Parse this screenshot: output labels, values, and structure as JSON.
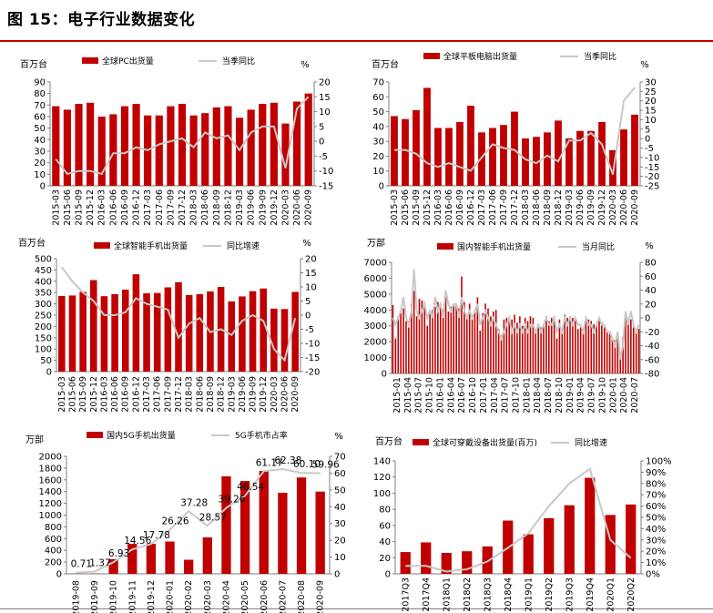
{
  "page": {
    "title": "图 15：电子行业数据变化"
  },
  "colors": {
    "bar": "#c00000",
    "line": "#c8c8c8",
    "axis": "#7f7f7f",
    "title_rule": "#c00000"
  },
  "chart_data": [
    {
      "type": "bar+line",
      "left_unit": "百万台",
      "right_unit": "%",
      "series": [
        {
          "name": "全球PC出货量",
          "type": "bar"
        },
        {
          "name": "当季同比",
          "type": "line"
        }
      ],
      "left_ylim": [
        0,
        90
      ],
      "left_ticks": [
        0,
        10,
        20,
        30,
        40,
        50,
        60,
        70,
        80,
        90
      ],
      "right_ylim": [
        -15,
        20
      ],
      "right_ticks": [
        -15,
        -10,
        -5,
        0,
        5,
        10,
        15,
        20
      ],
      "x": [
        "2015-03",
        "2015-06",
        "2015-09",
        "2015-12",
        "2016-03",
        "2016-06",
        "2016-09",
        "2016-12",
        "2017-03",
        "2017-06",
        "2017-09",
        "2017-12",
        "2018-03",
        "2018-06",
        "2018-09",
        "2018-12",
        "2019-03",
        "2019-06",
        "2019-09",
        "2019-12",
        "2020-03",
        "2020-06",
        "2020-09"
      ],
      "bar": [
        69,
        66,
        71,
        72,
        60,
        62,
        69,
        71,
        61,
        61,
        69,
        71,
        61,
        63,
        68,
        69,
        59,
        66,
        71,
        72,
        54,
        73,
        80
      ],
      "line": [
        -6,
        -11,
        -10,
        -10,
        -11,
        -4,
        -4,
        -2,
        -3,
        -1,
        0,
        1,
        -2,
        3,
        1,
        2,
        -3,
        3,
        5,
        5,
        -9,
        11,
        15
      ]
    },
    {
      "type": "bar+line",
      "left_unit": "百万台",
      "right_unit": "%",
      "series": [
        {
          "name": "全球平板电脑出货量",
          "type": "bar"
        },
        {
          "name": "当季同比",
          "type": "line"
        }
      ],
      "left_ylim": [
        0,
        70
      ],
      "left_ticks": [
        0,
        10,
        20,
        30,
        40,
        50,
        60,
        70
      ],
      "right_ylim": [
        -25,
        30
      ],
      "right_ticks": [
        -25,
        -20,
        -15,
        -10,
        -5,
        0,
        5,
        10,
        15,
        20,
        25,
        30
      ],
      "x": [
        "2015-03",
        "2015-06",
        "2015-09",
        "2015-12",
        "2016-03",
        "2016-06",
        "2016-09",
        "2016-12",
        "2017-03",
        "2017-06",
        "2017-09",
        "2017-12",
        "2018-03",
        "2018-06",
        "2018-09",
        "2018-12",
        "2019-03",
        "2019-06",
        "2019-09",
        "2019-12",
        "2020-03",
        "2020-06",
        "2020-09"
      ],
      "bar": [
        47,
        45,
        51,
        66,
        39,
        39,
        43,
        54,
        36,
        39,
        41,
        50,
        32,
        33,
        36,
        44,
        32,
        37,
        37,
        43,
        24,
        38,
        48
      ],
      "line": [
        -6,
        -6,
        -8,
        -13,
        -15,
        -13,
        -15,
        -17,
        -10,
        -3,
        -5,
        -6,
        -11,
        -13,
        -9,
        -12,
        -1,
        -1,
        3,
        -3,
        -19,
        20,
        27
      ]
    },
    {
      "type": "bar+line",
      "left_unit": "百万台",
      "right_unit": "%",
      "series": [
        {
          "name": "全球智能手机出货量",
          "type": "bar"
        },
        {
          "name": "同比增速",
          "type": "line"
        }
      ],
      "left_ylim": [
        0,
        500
      ],
      "left_ticks": [
        0,
        50,
        100,
        150,
        200,
        250,
        300,
        350,
        400,
        450,
        500
      ],
      "right_ylim": [
        -20,
        20
      ],
      "right_ticks": [
        -20,
        -15,
        -10,
        -5,
        0,
        5,
        10,
        15,
        20
      ],
      "x": [
        "2015-03",
        "2015-06",
        "2015-09",
        "2015-12",
        "2016-03",
        "2016-06",
        "2016-09",
        "2016-12",
        "2017-03",
        "2017-06",
        "2017-09",
        "2017-12",
        "2018-03",
        "2018-06",
        "2018-09",
        "2018-12",
        "2019-03",
        "2019-06",
        "2019-09",
        "2019-12",
        "2020-03",
        "2020-06",
        "2020-09"
      ],
      "bar": [
        335,
        337,
        353,
        405,
        334,
        343,
        363,
        431,
        347,
        348,
        373,
        396,
        339,
        343,
        355,
        375,
        311,
        333,
        356,
        368,
        279,
        277,
        353
      ],
      "line": [
        17,
        12,
        8,
        5,
        0,
        0,
        1,
        6,
        4,
        3,
        2,
        -8,
        -3,
        -1,
        -6,
        -5,
        -7,
        -2,
        0,
        -2,
        -12,
        -16,
        -1
      ]
    },
    {
      "type": "bar+line",
      "left_unit": "万部",
      "right_unit": "%",
      "series": [
        {
          "name": "国内智能手机出货量",
          "type": "bar"
        },
        {
          "name": "当月同比",
          "type": "line"
        }
      ],
      "left_ylim": [
        0,
        7000
      ],
      "left_ticks": [
        0,
        1000,
        2000,
        3000,
        4000,
        5000,
        6000,
        7000
      ],
      "right_ylim": [
        -80,
        80
      ],
      "right_ticks": [
        -80,
        -60,
        -40,
        -20,
        0,
        20,
        40,
        60,
        80
      ],
      "x_labels": [
        "2015-01",
        "2015-04",
        "2015-07",
        "2015-10",
        "2016-01",
        "2016-04",
        "2016-07",
        "2016-10",
        "2017-01",
        "2017-04",
        "2017-07",
        "2017-10",
        "2018-01",
        "2018-04",
        "2018-07",
        "2018-10",
        "2019-01",
        "2019-04",
        "2019-07",
        "2019-10",
        "2020-01",
        "2020-04",
        "2020-07"
      ],
      "bar": [
        4300,
        2200,
        3600,
        3800,
        4100,
        3300,
        2900,
        4400,
        5200,
        3600,
        4700,
        4600,
        4500,
        3000,
        3900,
        4000,
        4200,
        4500,
        4300,
        4000,
        5100,
        3900,
        4200,
        4300,
        4400,
        4100,
        6100,
        4500,
        3700,
        4400,
        3400,
        3900,
        4800,
        2700,
        3800,
        4400,
        4100,
        3600,
        3900,
        4000,
        2800,
        2400,
        3400,
        3500,
        3600,
        3400,
        3700,
        3200,
        3600,
        3000,
        3500,
        3300,
        3600,
        3500,
        2700,
        3100,
        2900,
        3100,
        3600,
        3300,
        3500,
        3600,
        2200,
        3400,
        2800,
        3700,
        3500,
        3600,
        3500,
        3400,
        2800,
        2900,
        2500,
        3500,
        3400,
        3300,
        3100,
        3000,
        3500,
        3200,
        2900,
        2600,
        2500,
        2200,
        2100,
        2300,
        1000,
        2300,
        3900,
        3200,
        3400,
        2900,
        2600,
        2800
      ],
      "line": [
        0,
        -10,
        0,
        10,
        30,
        0,
        -10,
        10,
        70,
        10,
        0,
        10,
        20,
        0,
        10,
        0,
        30,
        10,
        20,
        0,
        40,
        20,
        10,
        20,
        20,
        0,
        30,
        10,
        0,
        10,
        0,
        10,
        20,
        -10,
        0,
        10,
        0,
        -10,
        0,
        -10,
        -20,
        -30,
        -20,
        -10,
        0,
        -20,
        -10,
        -20,
        -10,
        -20,
        -10,
        -20,
        -10,
        -10,
        -20,
        -10,
        -20,
        -10,
        0,
        -10,
        -10,
        0,
        -20,
        -10,
        -20,
        0,
        -10,
        0,
        -10,
        0,
        -10,
        -10,
        -20,
        0,
        -10,
        -10,
        -20,
        -10,
        0,
        -10,
        -10,
        -20,
        -20,
        -30,
        -40,
        -20,
        -60,
        -40,
        10,
        -10,
        10,
        -10,
        -20,
        -10
      ]
    },
    {
      "type": "bar+line",
      "left_unit": "万部",
      "right_unit": "%",
      "series": [
        {
          "name": "国内5G手机出货量",
          "type": "bar"
        },
        {
          "name": "5G手机市占率",
          "type": "line"
        }
      ],
      "left_ylim": [
        0,
        2000
      ],
      "left_ticks": [
        0,
        200,
        400,
        600,
        800,
        1000,
        1200,
        1400,
        1600,
        1800,
        2000
      ],
      "right_ylim": [
        0,
        70
      ],
      "right_ticks": [
        0,
        10,
        20,
        30,
        40,
        50,
        60,
        70
      ],
      "x": [
        "2019-08",
        "2019-09",
        "2019-10",
        "2019-11",
        "2019-12",
        "2020-01",
        "2020-02",
        "2020-03",
        "2020-04",
        "2020-05",
        "2020-06",
        "2020-07",
        "2020-08",
        "2020-09"
      ],
      "bar": [
        2,
        5,
        250,
        510,
        510,
        550,
        240,
        620,
        1660,
        1580,
        1750,
        1380,
        1640,
        1400
      ],
      "line": [
        0.71,
        1.37,
        6.93,
        14.56,
        17.78,
        26.26,
        37.28,
        28.57,
        39.26,
        46.54,
        61.17,
        62.38,
        60.1,
        59.96
      ],
      "line_labels": [
        "0.71",
        "1.37",
        "6.93",
        "14.56",
        "17.78",
        "26.26",
        "37.28",
        "28.57",
        "39.26",
        "46.54",
        "61.17",
        "62.38",
        "60.10",
        "59.96"
      ]
    },
    {
      "type": "bar+line",
      "left_unit": "百万台",
      "right_unit": "",
      "series": [
        {
          "name": "全球可穿戴设备出货量(百万)",
          "type": "bar"
        },
        {
          "name": "同比增速",
          "type": "line"
        }
      ],
      "left_ylim": [
        0,
        140
      ],
      "left_ticks": [
        0,
        20,
        40,
        60,
        80,
        100,
        120,
        140
      ],
      "right_ylim": [
        0,
        100
      ],
      "right_ticks": [
        "0%",
        "10%",
        "20%",
        "30%",
        "40%",
        "50%",
        "60%",
        "70%",
        "80%",
        "90%",
        "100%"
      ],
      "x": [
        "2017Q3",
        "2017Q4",
        "2018Q1",
        "2018Q2",
        "2018Q3",
        "2018Q4",
        "2019Q1",
        "2019Q2",
        "2019Q3",
        "2019Q4",
        "2020Q1",
        "2020Q2"
      ],
      "bar": [
        27,
        39,
        26,
        28,
        34,
        66,
        49,
        69,
        85,
        119,
        73,
        86
      ],
      "line": [
        7,
        7,
        2,
        4,
        11,
        23,
        36,
        60,
        80,
        93,
        30,
        14
      ]
    }
  ]
}
